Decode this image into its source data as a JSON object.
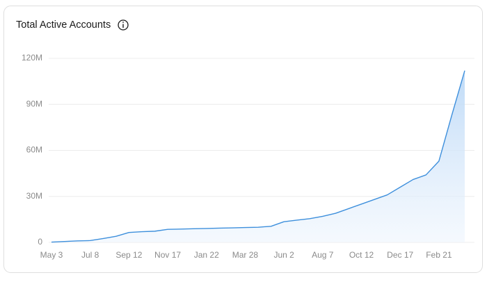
{
  "chart_data": {
    "type": "area",
    "title": "Total Active Accounts",
    "color": "#3d8fdc",
    "grid": true,
    "categories": [
      "May 3",
      null,
      null,
      "Jul 8",
      null,
      null,
      "Sep 12",
      null,
      null,
      "Nov 17",
      null,
      null,
      "Jan 22",
      null,
      null,
      "Mar 28",
      null,
      null,
      "Jun 2",
      null,
      null,
      "Aug 7",
      null,
      null,
      "Oct 12",
      null,
      null,
      "Dec 17",
      null,
      null,
      "Feb 21",
      null,
      null
    ],
    "values": [
      200000,
      600000,
      1000000,
      1200000,
      2500000,
      4000000,
      6500000,
      7000000,
      7300000,
      8500000,
      8700000,
      8900000,
      9100000,
      9300000,
      9500000,
      9700000,
      9900000,
      10500000,
      13500000,
      14500000,
      15500000,
      17000000,
      19000000,
      22000000,
      25000000,
      28000000,
      31000000,
      36000000,
      41000000,
      44000000,
      53000000,
      83000000,
      112000000
    ],
    "ylim": [
      0,
      120000000
    ],
    "yticks": [
      0,
      {
        "value": 30000000,
        "label": "30M"
      },
      {
        "value": 60000000,
        "label": "60M"
      },
      {
        "value": 90000000,
        "label": "90M"
      },
      {
        "value": 120000000,
        "label": "120M"
      }
    ]
  }
}
